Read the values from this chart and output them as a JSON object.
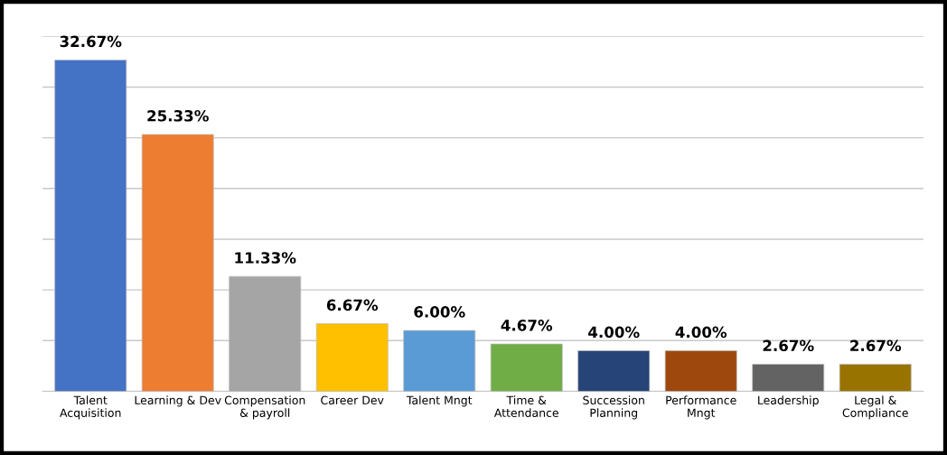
{
  "chart_data": {
    "type": "bar",
    "categories": [
      "Talent\nAcquisition",
      "Learning & Dev",
      "Compensation\n& payroll",
      "Career Dev",
      "Talent Mngt",
      "Time &\nAttendance",
      "Succession\nPlanning",
      "Performance\nMngt",
      "Leadership",
      "Legal &\nCompliance"
    ],
    "values": [
      32.67,
      25.33,
      11.33,
      6.67,
      6.0,
      4.67,
      4.0,
      4.0,
      2.67,
      2.67
    ],
    "value_labels": [
      "32.67%",
      "25.33%",
      "11.33%",
      "6.67%",
      "6.00%",
      "4.67%",
      "4.00%",
      "4.00%",
      "2.67%",
      "2.67%"
    ],
    "colors": [
      "#4472c4",
      "#ed7d31",
      "#a5a5a5",
      "#ffc000",
      "#5b9bd5",
      "#70ad47",
      "#264478",
      "#9e480e",
      "#636363",
      "#997300"
    ],
    "ylim": [
      0,
      35
    ],
    "yticks": [
      {
        "value": 0,
        "label": null
      },
      {
        "value": 5,
        "label": null
      },
      {
        "value": 10,
        "label": null
      },
      {
        "value": 15,
        "label": null
      },
      {
        "value": 20,
        "label": null
      },
      {
        "value": 25,
        "label": null
      },
      {
        "value": 30,
        "label": null
      },
      {
        "value": 35,
        "label": null
      }
    ],
    "grid": "y",
    "tick_labels": "x"
  }
}
